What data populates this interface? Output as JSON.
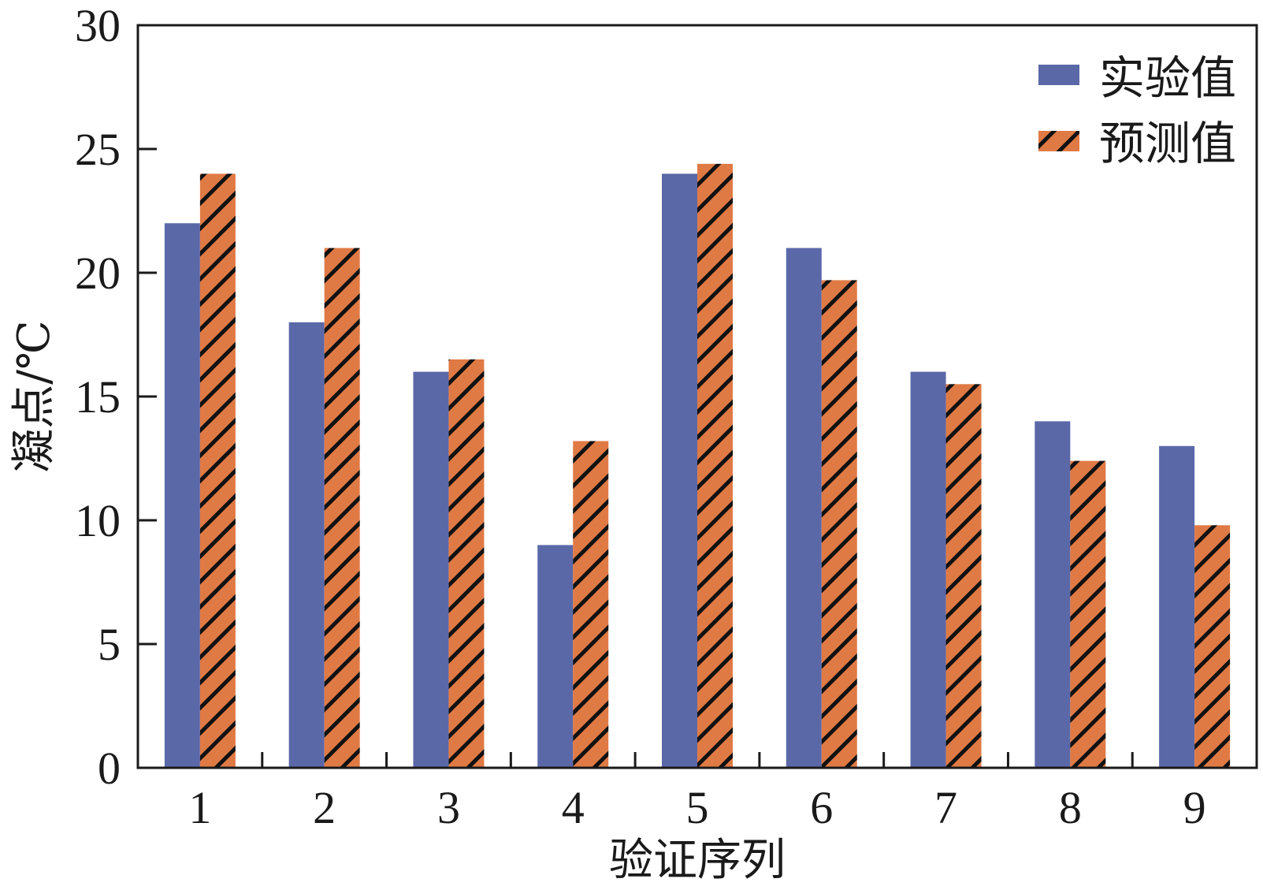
{
  "chart_data": {
    "type": "bar",
    "categories": [
      "1",
      "2",
      "3",
      "4",
      "5",
      "6",
      "7",
      "8",
      "9"
    ],
    "series": [
      {
        "name": "实验值",
        "values": [
          22,
          18,
          16,
          9,
          24,
          21,
          16,
          14,
          13
        ],
        "color": "#5b68a8",
        "pattern": "solid"
      },
      {
        "name": "预测值",
        "values": [
          24,
          21,
          16.5,
          13.2,
          24.4,
          19.7,
          15.5,
          12.4,
          9.8
        ],
        "color": "#e07a45",
        "pattern": "diagonal-hatch"
      }
    ],
    "xlabel": "验证序列",
    "ylabel": "凝点/℃",
    "ylim": [
      0,
      30
    ],
    "yticks": [
      "0",
      "5",
      "10",
      "15",
      "20",
      "25",
      "30"
    ],
    "grid": false,
    "legend_position": "top-right"
  }
}
